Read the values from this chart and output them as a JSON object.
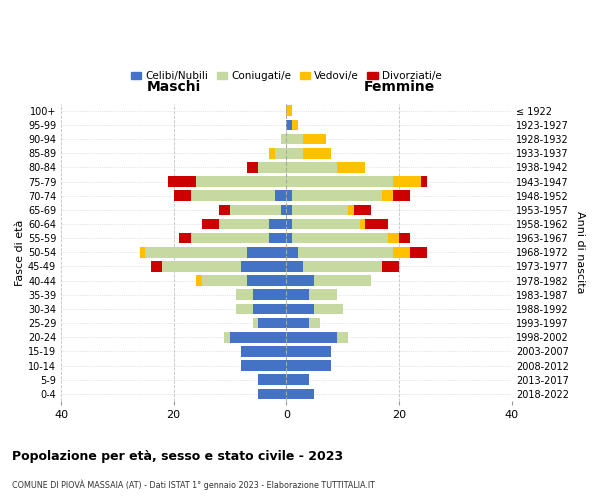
{
  "age_groups": [
    "100+",
    "95-99",
    "90-94",
    "85-89",
    "80-84",
    "75-79",
    "70-74",
    "65-69",
    "60-64",
    "55-59",
    "50-54",
    "45-49",
    "40-44",
    "35-39",
    "30-34",
    "25-29",
    "20-24",
    "15-19",
    "10-14",
    "5-9",
    "0-4"
  ],
  "birth_years": [
    "≤ 1922",
    "1923-1927",
    "1928-1932",
    "1933-1937",
    "1938-1942",
    "1943-1947",
    "1948-1952",
    "1953-1957",
    "1958-1962",
    "1963-1967",
    "1968-1972",
    "1973-1977",
    "1978-1982",
    "1983-1987",
    "1988-1992",
    "1993-1997",
    "1998-2002",
    "2003-2007",
    "2008-2012",
    "2013-2017",
    "2018-2022"
  ],
  "colors": {
    "celibi": "#4472c4",
    "coniugati": "#c5d9a0",
    "vedovi": "#ffc000",
    "divorziati": "#cc0000"
  },
  "maschi": {
    "celibi": [
      0,
      0,
      0,
      0,
      0,
      0,
      2,
      1,
      3,
      3,
      7,
      8,
      7,
      6,
      6,
      5,
      10,
      8,
      8,
      5,
      5
    ],
    "coniugati": [
      0,
      0,
      1,
      2,
      5,
      16,
      15,
      9,
      9,
      14,
      18,
      14,
      8,
      3,
      3,
      1,
      1,
      0,
      0,
      0,
      0
    ],
    "vedovi": [
      0,
      0,
      0,
      1,
      0,
      0,
      0,
      0,
      0,
      0,
      1,
      0,
      1,
      0,
      0,
      0,
      0,
      0,
      0,
      0,
      0
    ],
    "divorziati": [
      0,
      0,
      0,
      0,
      2,
      5,
      3,
      2,
      3,
      2,
      0,
      2,
      0,
      0,
      0,
      0,
      0,
      0,
      0,
      0,
      0
    ]
  },
  "femmine": {
    "celibi": [
      0,
      1,
      0,
      0,
      0,
      0,
      1,
      1,
      1,
      1,
      2,
      3,
      5,
      4,
      5,
      4,
      9,
      8,
      8,
      4,
      5
    ],
    "coniugati": [
      0,
      0,
      3,
      3,
      9,
      19,
      16,
      10,
      12,
      17,
      17,
      14,
      10,
      5,
      5,
      2,
      2,
      0,
      0,
      0,
      0
    ],
    "vedovi": [
      1,
      1,
      4,
      5,
      5,
      5,
      2,
      1,
      1,
      2,
      3,
      0,
      0,
      0,
      0,
      0,
      0,
      0,
      0,
      0,
      0
    ],
    "divorziati": [
      0,
      0,
      0,
      0,
      0,
      1,
      3,
      3,
      4,
      2,
      3,
      3,
      0,
      0,
      0,
      0,
      0,
      0,
      0,
      0,
      0
    ]
  },
  "xlim": 40,
  "title": "Popolazione per età, sesso e stato civile - 2023",
  "subtitle": "COMUNE DI PIOVÀ MASSAIA (AT) - Dati ISTAT 1° gennaio 2023 - Elaborazione TUTTITALIA.IT",
  "ylabel_left": "Fasce di età",
  "ylabel_right": "Anni di nascita",
  "xlabel_left": "Maschi",
  "xlabel_right": "Femmine",
  "legend_labels": [
    "Celibi/Nubili",
    "Coniugati/e",
    "Vedovi/e",
    "Divorziati/e"
  ],
  "background_color": "#ffffff",
  "grid_color": "#cccccc"
}
